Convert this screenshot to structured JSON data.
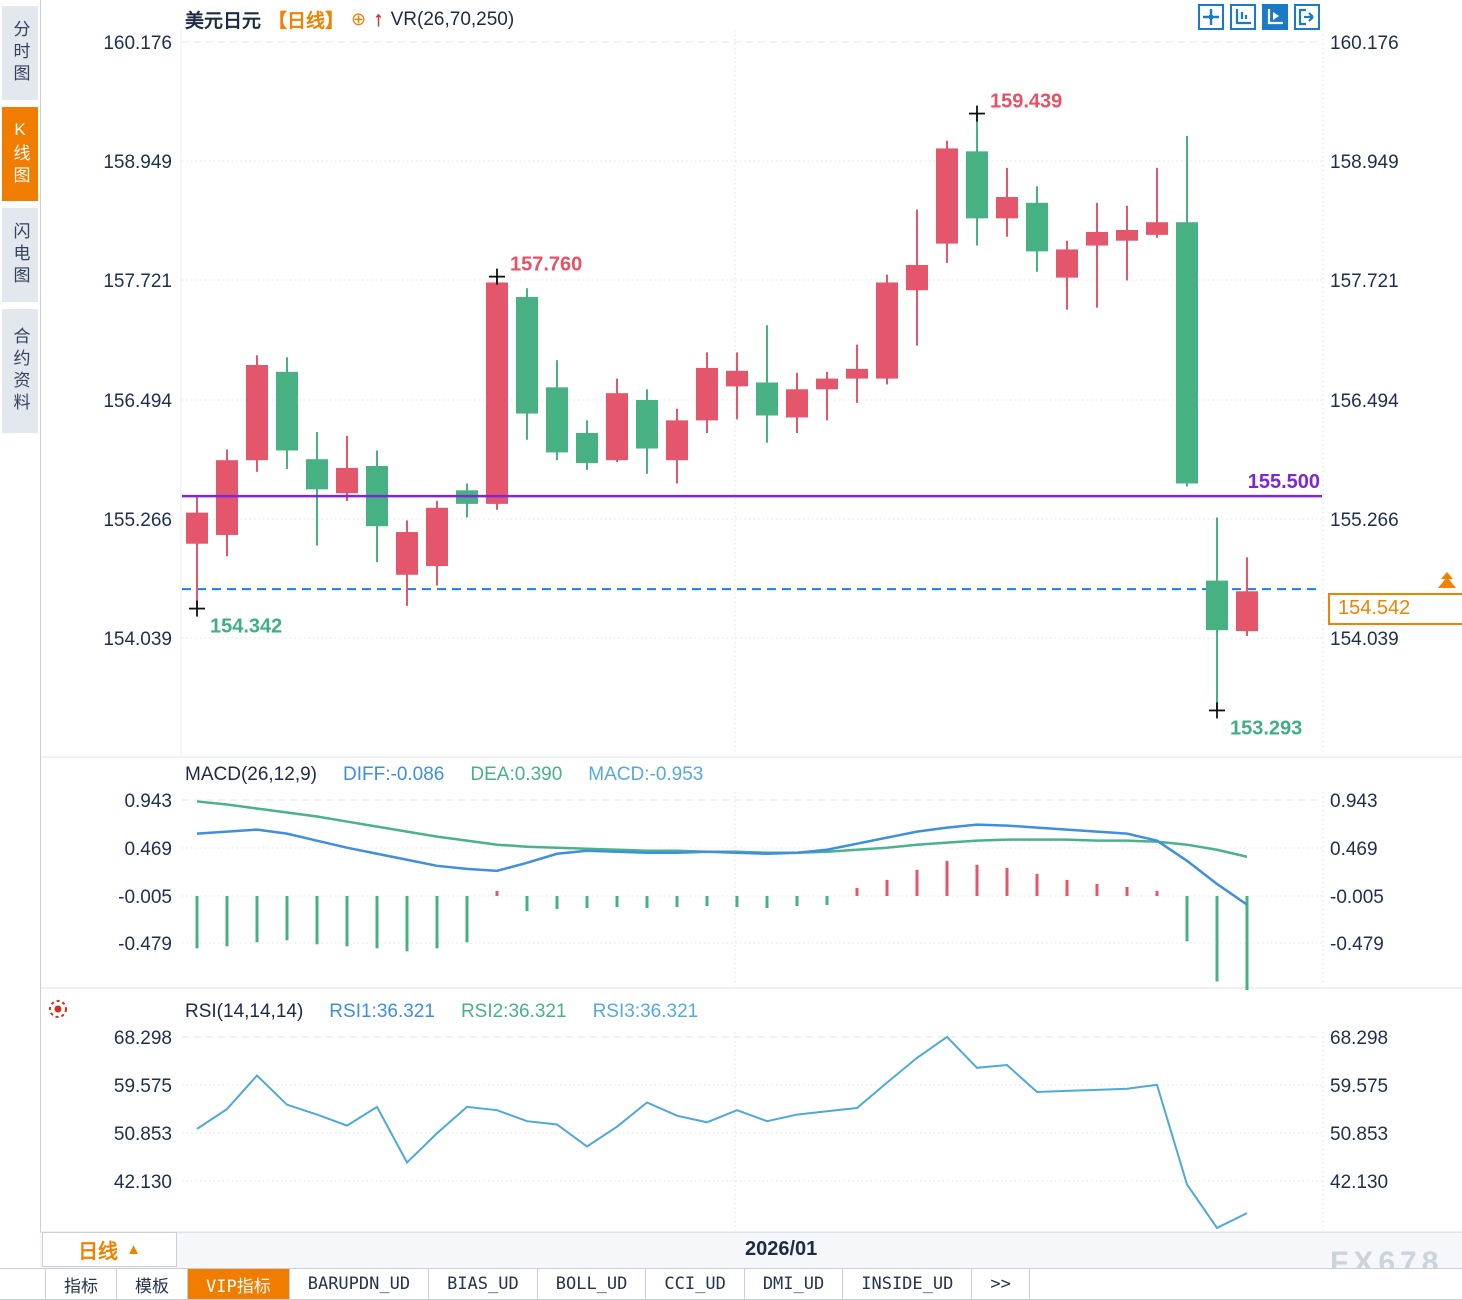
{
  "sidebar": {
    "tabs": [
      {
        "label": "分时图",
        "active": false
      },
      {
        "label": "K线图",
        "active": true
      },
      {
        "label": "闪电图",
        "active": false
      },
      {
        "label": "合约资料",
        "active": false
      }
    ]
  },
  "header": {
    "symbol": "美元日元",
    "period": "【日线】",
    "plus_icon": "⊕",
    "arrow_icon": "↑",
    "indicator": "VR(26,70,250)"
  },
  "toolbar": {
    "buttons": [
      {
        "name": "pan-crosshair",
        "active": false
      },
      {
        "name": "axis-scale",
        "active": false
      },
      {
        "name": "axis-auto",
        "active": true
      },
      {
        "name": "exit-right",
        "active": false
      }
    ]
  },
  "price_box": {
    "value": "154.542"
  },
  "bottom": {
    "period_label": "日线",
    "period_arrow": "▲",
    "date_label": "2026/01",
    "watermark": "FX678",
    "tabs": [
      {
        "label": "指标",
        "active": false
      },
      {
        "label": "模板",
        "active": false
      },
      {
        "label": "VIP指标",
        "active": true
      },
      {
        "label": "BARUPDN_UD",
        "active": false
      },
      {
        "label": "BIAS_UD",
        "active": false
      },
      {
        "label": "BOLL_UD",
        "active": false
      },
      {
        "label": "CCI_UD",
        "active": false
      },
      {
        "label": "DMI_UD",
        "active": false
      },
      {
        "label": "INSIDE_UD",
        "active": false
      },
      {
        "label": ">>",
        "active": false
      }
    ]
  },
  "colors": {
    "up_candle": "#e4566b",
    "down_candle": "#47b183",
    "accent_orange": "#f08200",
    "support_line": "#7d28d8",
    "last_price_line": "#1a7fe8",
    "diff_line": "#3f8fde",
    "dea_line": "#49b28b",
    "rsi_line": "#4fa9d6",
    "axis_text": "#1e2f4c",
    "annotation_red": "#e85064",
    "annotation_green": "#3fae85"
  },
  "chart_data": {
    "type": "candlestick",
    "title": "美元日元 日线",
    "x_label": "2026/01",
    "y_axis_labels": [
      "160.176",
      "158.949",
      "157.721",
      "156.494",
      "155.266",
      "154.039"
    ],
    "y_axis_values": [
      160.176,
      158.949,
      157.721,
      156.494,
      155.266,
      154.039
    ],
    "support_line": 155.5,
    "support_line_label": "155.500",
    "last_price": 154.542,
    "last_price_label": "154.542",
    "candles": [
      [
        155.01,
        155.49,
        154.342,
        155.33
      ],
      [
        155.1,
        155.98,
        154.88,
        155.87
      ],
      [
        155.87,
        156.95,
        155.75,
        156.85
      ],
      [
        156.78,
        156.93,
        155.78,
        155.97
      ],
      [
        155.88,
        156.16,
        154.99,
        155.57
      ],
      [
        155.53,
        156.12,
        155.45,
        155.79
      ],
      [
        155.81,
        155.97,
        154.82,
        155.19
      ],
      [
        154.69,
        155.25,
        154.37,
        155.13
      ],
      [
        154.78,
        155.45,
        154.58,
        155.38
      ],
      [
        155.56,
        155.63,
        155.28,
        155.42
      ],
      [
        155.42,
        157.76,
        155.36,
        157.7
      ],
      [
        157.55,
        157.64,
        156.08,
        156.35
      ],
      [
        156.62,
        156.9,
        155.87,
        155.95
      ],
      [
        156.15,
        156.28,
        155.77,
        155.84
      ],
      [
        155.87,
        156.71,
        155.85,
        156.56
      ],
      [
        156.49,
        156.6,
        155.73,
        155.99
      ],
      [
        155.87,
        156.4,
        155.63,
        156.28
      ],
      [
        156.28,
        156.98,
        156.15,
        156.82
      ],
      [
        156.63,
        156.98,
        156.29,
        156.79
      ],
      [
        156.67,
        157.26,
        156.05,
        156.33
      ],
      [
        156.31,
        156.77,
        156.15,
        156.6
      ],
      [
        156.6,
        156.78,
        156.28,
        156.71
      ],
      [
        156.71,
        157.06,
        156.46,
        156.81
      ],
      [
        156.71,
        157.78,
        156.65,
        157.7
      ],
      [
        157.62,
        158.45,
        157.05,
        157.88
      ],
      [
        158.1,
        159.16,
        157.9,
        159.08
      ],
      [
        159.05,
        159.439,
        158.08,
        158.36
      ],
      [
        158.36,
        158.88,
        158.17,
        158.58
      ],
      [
        158.52,
        158.69,
        157.81,
        158.02
      ],
      [
        157.75,
        158.13,
        157.42,
        158.04
      ],
      [
        158.08,
        158.52,
        157.44,
        158.22
      ],
      [
        158.13,
        158.49,
        157.72,
        158.24
      ],
      [
        158.19,
        158.88,
        158.16,
        158.32
      ],
      [
        158.32,
        159.21,
        155.6,
        155.63
      ],
      [
        154.63,
        155.28,
        153.293,
        154.12
      ],
      [
        154.11,
        154.87,
        154.06,
        154.52
      ]
    ],
    "annotations": [
      {
        "text": "159.439",
        "candle": 26,
        "place": "high",
        "color": "red"
      },
      {
        "text": "157.760",
        "candle": 10,
        "place": "high",
        "color": "red"
      },
      {
        "text": "154.342",
        "candle": 0,
        "place": "low",
        "color": "green"
      },
      {
        "text": "153.293",
        "candle": 34,
        "place": "low",
        "color": "green"
      }
    ],
    "macd": {
      "title": "MACD(26,12,9)",
      "diff_label": "DIFF:-0.086",
      "dea_label": "DEA:0.390",
      "macd_label": "MACD:-0.953",
      "axis_labels": [
        "0.943",
        "0.469",
        "-0.005",
        "-0.479"
      ],
      "axis_values": [
        0.943,
        0.469,
        -0.005,
        -0.479
      ],
      "diff": [
        0.62,
        0.64,
        0.66,
        0.62,
        0.55,
        0.48,
        0.42,
        0.36,
        0.3,
        0.27,
        0.25,
        0.33,
        0.42,
        0.45,
        0.44,
        0.43,
        0.43,
        0.44,
        0.43,
        0.42,
        0.43,
        0.46,
        0.52,
        0.58,
        0.64,
        0.68,
        0.71,
        0.7,
        0.68,
        0.66,
        0.64,
        0.62,
        0.55,
        0.35,
        0.12,
        -0.086
      ],
      "dea": [
        0.94,
        0.91,
        0.87,
        0.83,
        0.79,
        0.74,
        0.69,
        0.64,
        0.59,
        0.55,
        0.51,
        0.49,
        0.48,
        0.47,
        0.46,
        0.45,
        0.45,
        0.44,
        0.44,
        0.43,
        0.43,
        0.44,
        0.46,
        0.48,
        0.51,
        0.53,
        0.55,
        0.56,
        0.56,
        0.56,
        0.55,
        0.55,
        0.54,
        0.51,
        0.46,
        0.39
      ],
      "hist": [
        -0.52,
        -0.5,
        -0.46,
        -0.44,
        -0.48,
        -0.5,
        -0.52,
        -0.55,
        -0.52,
        -0.46,
        0.05,
        -0.15,
        -0.13,
        -0.12,
        -0.11,
        -0.12,
        -0.11,
        -0.1,
        -0.11,
        -0.12,
        -0.1,
        -0.09,
        0.08,
        0.16,
        0.26,
        0.35,
        0.31,
        0.28,
        0.22,
        0.16,
        0.12,
        0.09,
        0.05,
        -0.45,
        -0.85,
        -0.953
      ]
    },
    "rsi": {
      "title": "RSI(14,14,14)",
      "rsi1_label": "RSI1:36.321",
      "rsi2_label": "RSI2:36.321",
      "rsi3_label": "RSI3:36.321",
      "axis_labels": [
        "68.298",
        "59.575",
        "50.853",
        "42.130"
      ],
      "axis_values": [
        68.298,
        59.575,
        50.853,
        42.13
      ],
      "values": [
        51.6,
        55.2,
        61.3,
        56.0,
        54.2,
        52.2,
        55.6,
        45.5,
        50.8,
        55.6,
        55.0,
        53.0,
        52.4,
        48.4,
        52.0,
        56.4,
        54.0,
        52.8,
        55.0,
        53.0,
        54.2,
        54.8,
        55.4,
        60.0,
        64.5,
        68.3,
        62.7,
        63.2,
        58.3,
        58.5,
        58.7,
        58.9,
        59.6,
        41.5,
        33.6,
        36.3
      ]
    }
  }
}
